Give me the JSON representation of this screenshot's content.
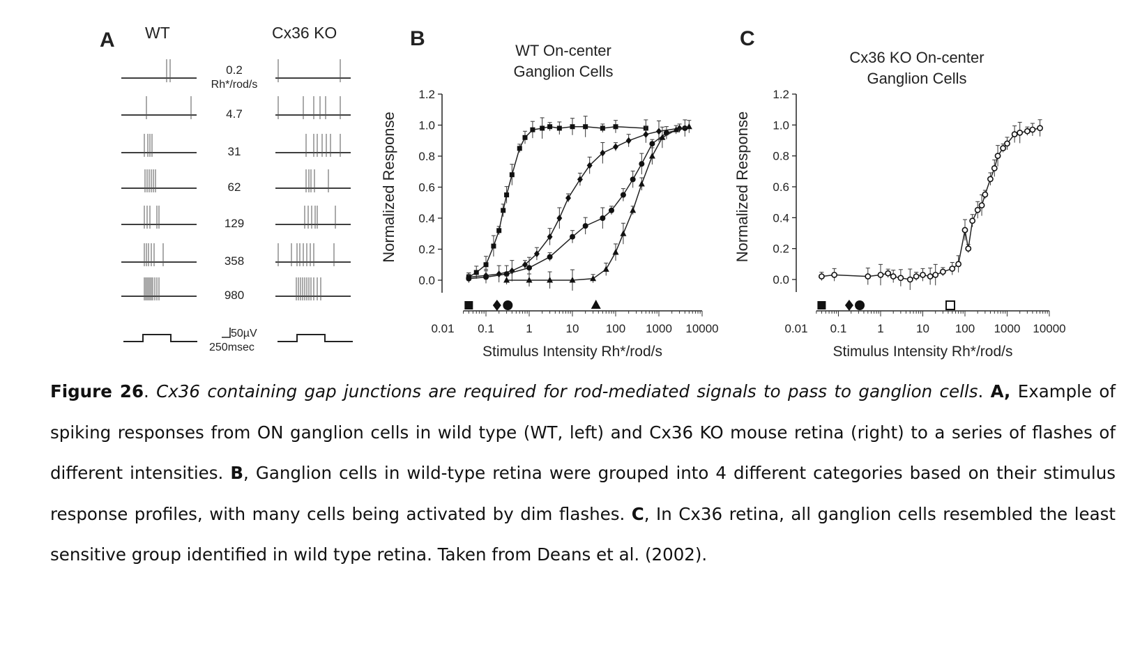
{
  "panel_a": {
    "letter": "A",
    "col_wt": "WT",
    "col_ko": "Cx36 KO",
    "first_label_value": "0.2",
    "first_label_unit": "Rh*/rod/s",
    "intensities": [
      "4.7",
      "31",
      "62",
      "129",
      "358",
      "980"
    ],
    "scale_voltage": "50µV",
    "scale_time": "250msec"
  },
  "chart_data": [
    {
      "panel": "B",
      "type": "scatter",
      "title": "WT On-center Ganglion Cells",
      "xlabel": "Stimulus Intensity Rh*/rod/s",
      "ylabel": "Normalized Response",
      "x_scale": "log",
      "xlim": [
        0.01,
        10000
      ],
      "ylim": [
        0,
        1.2
      ],
      "x_ticks": [
        "0.01",
        "0.1",
        "1",
        "10",
        "100",
        "1000",
        "10000"
      ],
      "y_ticks": [
        "0.0",
        "0.2",
        "0.4",
        "0.6",
        "0.8",
        "1.0",
        "1.2"
      ],
      "markers": [
        {
          "shape": "square",
          "x": 0.04
        },
        {
          "shape": "diamond",
          "x": 0.18
        },
        {
          "shape": "circle",
          "x": 0.32
        },
        {
          "shape": "triangle",
          "x": 35
        }
      ],
      "series": [
        {
          "marker": "filled-square",
          "points": [
            [
              0.04,
              0.02
            ],
            [
              0.06,
              0.05
            ],
            [
              0.1,
              0.1
            ],
            [
              0.15,
              0.22
            ],
            [
              0.2,
              0.32
            ],
            [
              0.25,
              0.45
            ],
            [
              0.3,
              0.55
            ],
            [
              0.4,
              0.68
            ],
            [
              0.6,
              0.85
            ],
            [
              0.8,
              0.92
            ],
            [
              1.2,
              0.97
            ],
            [
              2,
              0.98
            ],
            [
              3,
              0.99
            ],
            [
              5,
              0.98
            ],
            [
              10,
              0.99
            ],
            [
              20,
              0.99
            ],
            [
              50,
              0.98
            ],
            [
              100,
              0.99
            ],
            [
              500,
              0.98
            ]
          ]
        },
        {
          "marker": "filled-diamond",
          "points": [
            [
              0.04,
              0.02
            ],
            [
              0.1,
              0.03
            ],
            [
              0.2,
              0.04
            ],
            [
              0.4,
              0.06
            ],
            [
              0.8,
              0.1
            ],
            [
              1.5,
              0.17
            ],
            [
              3,
              0.28
            ],
            [
              5,
              0.4
            ],
            [
              8,
              0.53
            ],
            [
              15,
              0.65
            ],
            [
              25,
              0.74
            ],
            [
              50,
              0.82
            ],
            [
              100,
              0.86
            ],
            [
              200,
              0.9
            ],
            [
              500,
              0.94
            ],
            [
              1000,
              0.96
            ],
            [
              3000,
              0.98
            ]
          ]
        },
        {
          "marker": "filled-circle",
          "points": [
            [
              0.04,
              0.01
            ],
            [
              0.1,
              0.02
            ],
            [
              0.3,
              0.04
            ],
            [
              1,
              0.08
            ],
            [
              3,
              0.15
            ],
            [
              10,
              0.28
            ],
            [
              20,
              0.35
            ],
            [
              50,
              0.4
            ],
            [
              80,
              0.45
            ],
            [
              150,
              0.55
            ],
            [
              250,
              0.65
            ],
            [
              400,
              0.75
            ],
            [
              700,
              0.88
            ],
            [
              1500,
              0.95
            ],
            [
              4000,
              0.98
            ]
          ]
        },
        {
          "marker": "filled-triangle",
          "points": [
            [
              0.3,
              0.0
            ],
            [
              1,
              0.0
            ],
            [
              3,
              0.0
            ],
            [
              10,
              0.0
            ],
            [
              30,
              0.01
            ],
            [
              60,
              0.07
            ],
            [
              100,
              0.18
            ],
            [
              150,
              0.3
            ],
            [
              250,
              0.45
            ],
            [
              400,
              0.62
            ],
            [
              700,
              0.8
            ],
            [
              1200,
              0.92
            ],
            [
              2500,
              0.97
            ],
            [
              5000,
              0.99
            ]
          ]
        }
      ]
    },
    {
      "panel": "C",
      "type": "scatter",
      "title": "Cx36 KO On-center Ganglion Cells",
      "xlabel": "Stimulus Intensity Rh*/rod/s",
      "ylabel": "Normalized Response",
      "x_scale": "log",
      "xlim": [
        0.01,
        10000
      ],
      "ylim": [
        0,
        1.2
      ],
      "x_ticks": [
        "0.01",
        "0.1",
        "1",
        "10",
        "100",
        "1000",
        "10000"
      ],
      "y_ticks": [
        "0.0",
        "0.2",
        "0.4",
        "0.6",
        "0.8",
        "1.0",
        "1.2"
      ],
      "markers": [
        {
          "shape": "square",
          "x": 0.04
        },
        {
          "shape": "diamond",
          "x": 0.18
        },
        {
          "shape": "circle",
          "x": 0.32
        },
        {
          "shape": "open-square",
          "x": 45
        }
      ],
      "series": [
        {
          "marker": "open-circle",
          "points": [
            [
              0.04,
              0.02
            ],
            [
              0.08,
              0.03
            ],
            [
              0.5,
              0.02
            ],
            [
              1,
              0.03
            ],
            [
              1.5,
              0.04
            ],
            [
              2,
              0.02
            ],
            [
              3,
              0.01
            ],
            [
              5,
              0.0
            ],
            [
              7,
              0.02
            ],
            [
              10,
              0.03
            ],
            [
              15,
              0.02
            ],
            [
              20,
              0.03
            ],
            [
              30,
              0.05
            ],
            [
              50,
              0.07
            ],
            [
              70,
              0.1
            ],
            [
              100,
              0.32
            ],
            [
              120,
              0.2
            ],
            [
              150,
              0.38
            ],
            [
              200,
              0.45
            ],
            [
              250,
              0.48
            ],
            [
              300,
              0.55
            ],
            [
              400,
              0.65
            ],
            [
              500,
              0.72
            ],
            [
              600,
              0.8
            ],
            [
              800,
              0.85
            ],
            [
              1000,
              0.88
            ],
            [
              1500,
              0.94
            ],
            [
              2000,
              0.95
            ],
            [
              3000,
              0.96
            ],
            [
              4000,
              0.97
            ],
            [
              6000,
              0.98
            ]
          ]
        }
      ]
    }
  ],
  "caption": {
    "figure_label": "Figure 26",
    "title_italic": "Cx36 containing gap junctions are required for rod-mediated signals to pass to ganglion cells",
    "label_a": "A,",
    "text_a": "Example of spiking responses from ON ganglion cells in wild type (WT, left) and Cx36 KO mouse retina (right) to a series of flashes of different intensities.",
    "label_b": "B",
    "text_b": ", Ganglion cells in wild-type retina were grouped into 4 different categories based on their stimulus response profiles, with many cells being activated by dim flashes.",
    "label_c": "C",
    "text_c": ", In Cx36 retina, all ganglion cells resembled the least sensitive group identified in wild type retina. Taken from Deans et al. (2002)."
  }
}
